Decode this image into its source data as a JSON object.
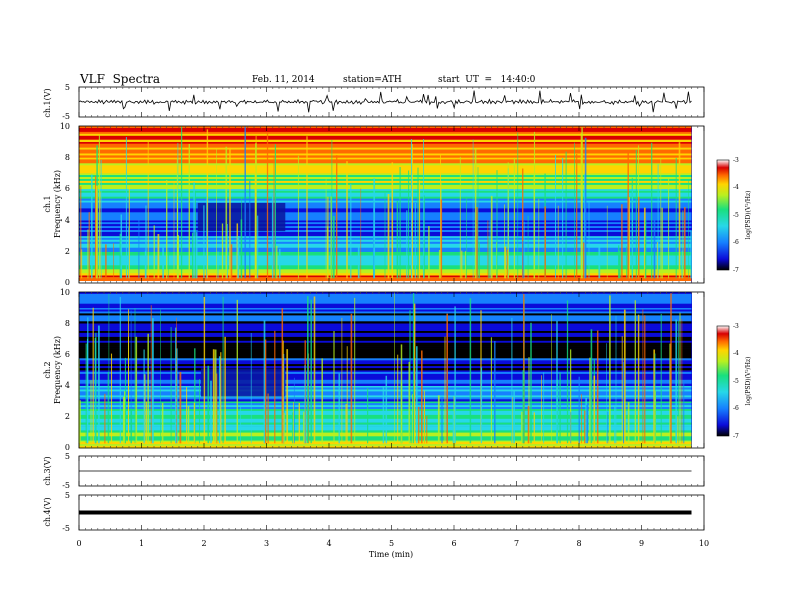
{
  "header": {
    "title": "VLF  Spectra",
    "date": "Feb. 11, 2014",
    "station": "station=ATH",
    "start": "start  UT  =   14:40:0"
  },
  "colors": {
    "spectrogram_colormap": [
      "#000000",
      "#0b0bd9",
      "#1680ff",
      "#27d8e8",
      "#19e07e",
      "#b9f020",
      "#ffd400",
      "#ff6a00",
      "#d80000",
      "#ffffff"
    ]
  },
  "chart_data": [
    {
      "type": "line",
      "panel": "ch1",
      "ylabel": "ch.1(V)",
      "ylim": [
        -5,
        5
      ],
      "yticks": [
        "5",
        "-5"
      ],
      "xlim": [
        0,
        10
      ],
      "description_values": {
        "baseline": 0,
        "typical_noise_amplitude": 0.6,
        "spike_amplitude_max": 3.5
      },
      "y": [
        0.0,
        0.3,
        -0.2,
        0.5,
        -0.4,
        0.2,
        0.1,
        -0.3,
        0.6,
        -0.5,
        0.2,
        0.0,
        -0.2,
        0.4,
        -0.1,
        0.3,
        -0.4,
        0.1,
        0.2,
        -0.3
      ]
    },
    {
      "type": "heatmap",
      "panel": "ch1-spectrogram",
      "ylabel_top": "ch.1",
      "ylabel": "Frequency  (kHz)",
      "ylim": [
        0,
        10
      ],
      "yticks": [
        "0",
        "2",
        "4",
        "6",
        "8",
        "10"
      ],
      "xlim": [
        0,
        10
      ],
      "colorbar": {
        "label": "log(PSD)(V²/Hz)",
        "range": [
          -7,
          -3
        ],
        "ticks": [
          "-3",
          "-4",
          "-5",
          "-6",
          "-7"
        ]
      },
      "freq_bands_khz": [
        0,
        0.5,
        1,
        2,
        3,
        4,
        5,
        6,
        7,
        8,
        9,
        10
      ],
      "band_log_psd": [
        -3.4,
        -4.8,
        -5.2,
        -5.8,
        -6.3,
        -6.4,
        -5.7,
        -4.9,
        -4.4,
        -4.0,
        -3.8
      ],
      "quiet_interval_min": [
        1.9,
        3.3
      ],
      "data_end_min": 9.8
    },
    {
      "type": "heatmap",
      "panel": "ch2-spectrogram",
      "ylabel_top": "ch.2",
      "ylabel": "Frequency  (kHz)",
      "ylim": [
        0,
        10
      ],
      "yticks": [
        "0",
        "2",
        "4",
        "6",
        "8",
        "10"
      ],
      "xlim": [
        0,
        10
      ],
      "colorbar": {
        "label": "log(PSD)(V²/Hz)",
        "range": [
          -7,
          -3
        ],
        "ticks": [
          "-3",
          "-4",
          "-5",
          "-6",
          "-7"
        ]
      },
      "freq_bands_khz": [
        0,
        0.5,
        1,
        2,
        3,
        4,
        5,
        6,
        7,
        8,
        9,
        10
      ],
      "band_log_psd": [
        -4.6,
        -5.0,
        -5.3,
        -5.6,
        -6.0,
        -6.3,
        -6.7,
        -6.8,
        -6.9,
        -6.6,
        -6.2
      ],
      "quiet_interval_min": [
        1.95,
        3.3
      ],
      "data_end_min": 9.8
    },
    {
      "type": "line",
      "panel": "ch3",
      "ylabel": "ch.3(V)",
      "ylim": [
        -5,
        5
      ],
      "yticks": [
        "5",
        "-5"
      ],
      "xlim": [
        0,
        10
      ],
      "level": 0
    },
    {
      "type": "line",
      "panel": "ch4",
      "ylabel": "ch.4(V)",
      "ylim": [
        -5,
        5
      ],
      "yticks": [
        "5",
        "-5"
      ],
      "xlim": [
        0,
        10
      ],
      "level": 0
    }
  ],
  "xaxis": {
    "label": "Time  (min)",
    "ticks": [
      "0",
      "1",
      "2",
      "3",
      "4",
      "5",
      "6",
      "7",
      "8",
      "9",
      "10"
    ]
  }
}
